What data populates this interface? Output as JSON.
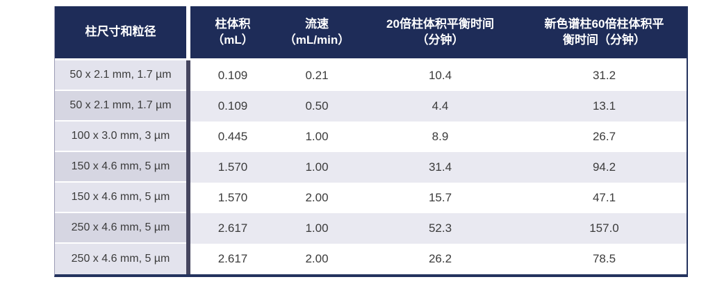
{
  "table": {
    "headers": [
      {
        "line1": "柱尺寸和粒径",
        "line2": ""
      },
      {
        "line1": "柱体积",
        "line2": "（mL）"
      },
      {
        "line1": "流速",
        "line2": "（mL/min）"
      },
      {
        "line1": "20倍柱体积平衡时间",
        "line2": "（分钟）"
      },
      {
        "line1": "新色谱柱60倍柱体积平",
        "line2": "衡时间（分钟）"
      }
    ],
    "rows": [
      [
        "50 x 2.1 mm, 1.7 µm",
        "0.109",
        "0.21",
        "10.4",
        "31.2"
      ],
      [
        "50 x 2.1 mm, 1.7 µm",
        "0.109",
        "0.50",
        "4.4",
        "13.1"
      ],
      [
        "100 x 3.0 mm, 3 µm",
        "0.445",
        "1.00",
        "8.9",
        "26.7"
      ],
      [
        "150 x 4.6 mm, 5 µm",
        "1.570",
        "1.00",
        "31.4",
        "94.2"
      ],
      [
        "150 x 4.6 mm, 5 µm",
        "1.570",
        "2.00",
        "15.7",
        "47.1"
      ],
      [
        "250 x 4.6 mm, 5 µm",
        "2.617",
        "1.00",
        "52.3",
        "157.0"
      ],
      [
        "250 x 4.6 mm, 5 µm",
        "2.617",
        "2.00",
        "26.2",
        "78.5"
      ]
    ]
  },
  "colors": {
    "header_bg": "#1e2c58",
    "header_text": "#ffffff",
    "row_alt_bg": "#e9e9f1",
    "first_col_bg": "#e3e3ed",
    "first_col_alt_bg": "#d6d6e2",
    "body_text": "#3b3b3b",
    "divider": "#45455e",
    "outer_border": "#24335e"
  }
}
